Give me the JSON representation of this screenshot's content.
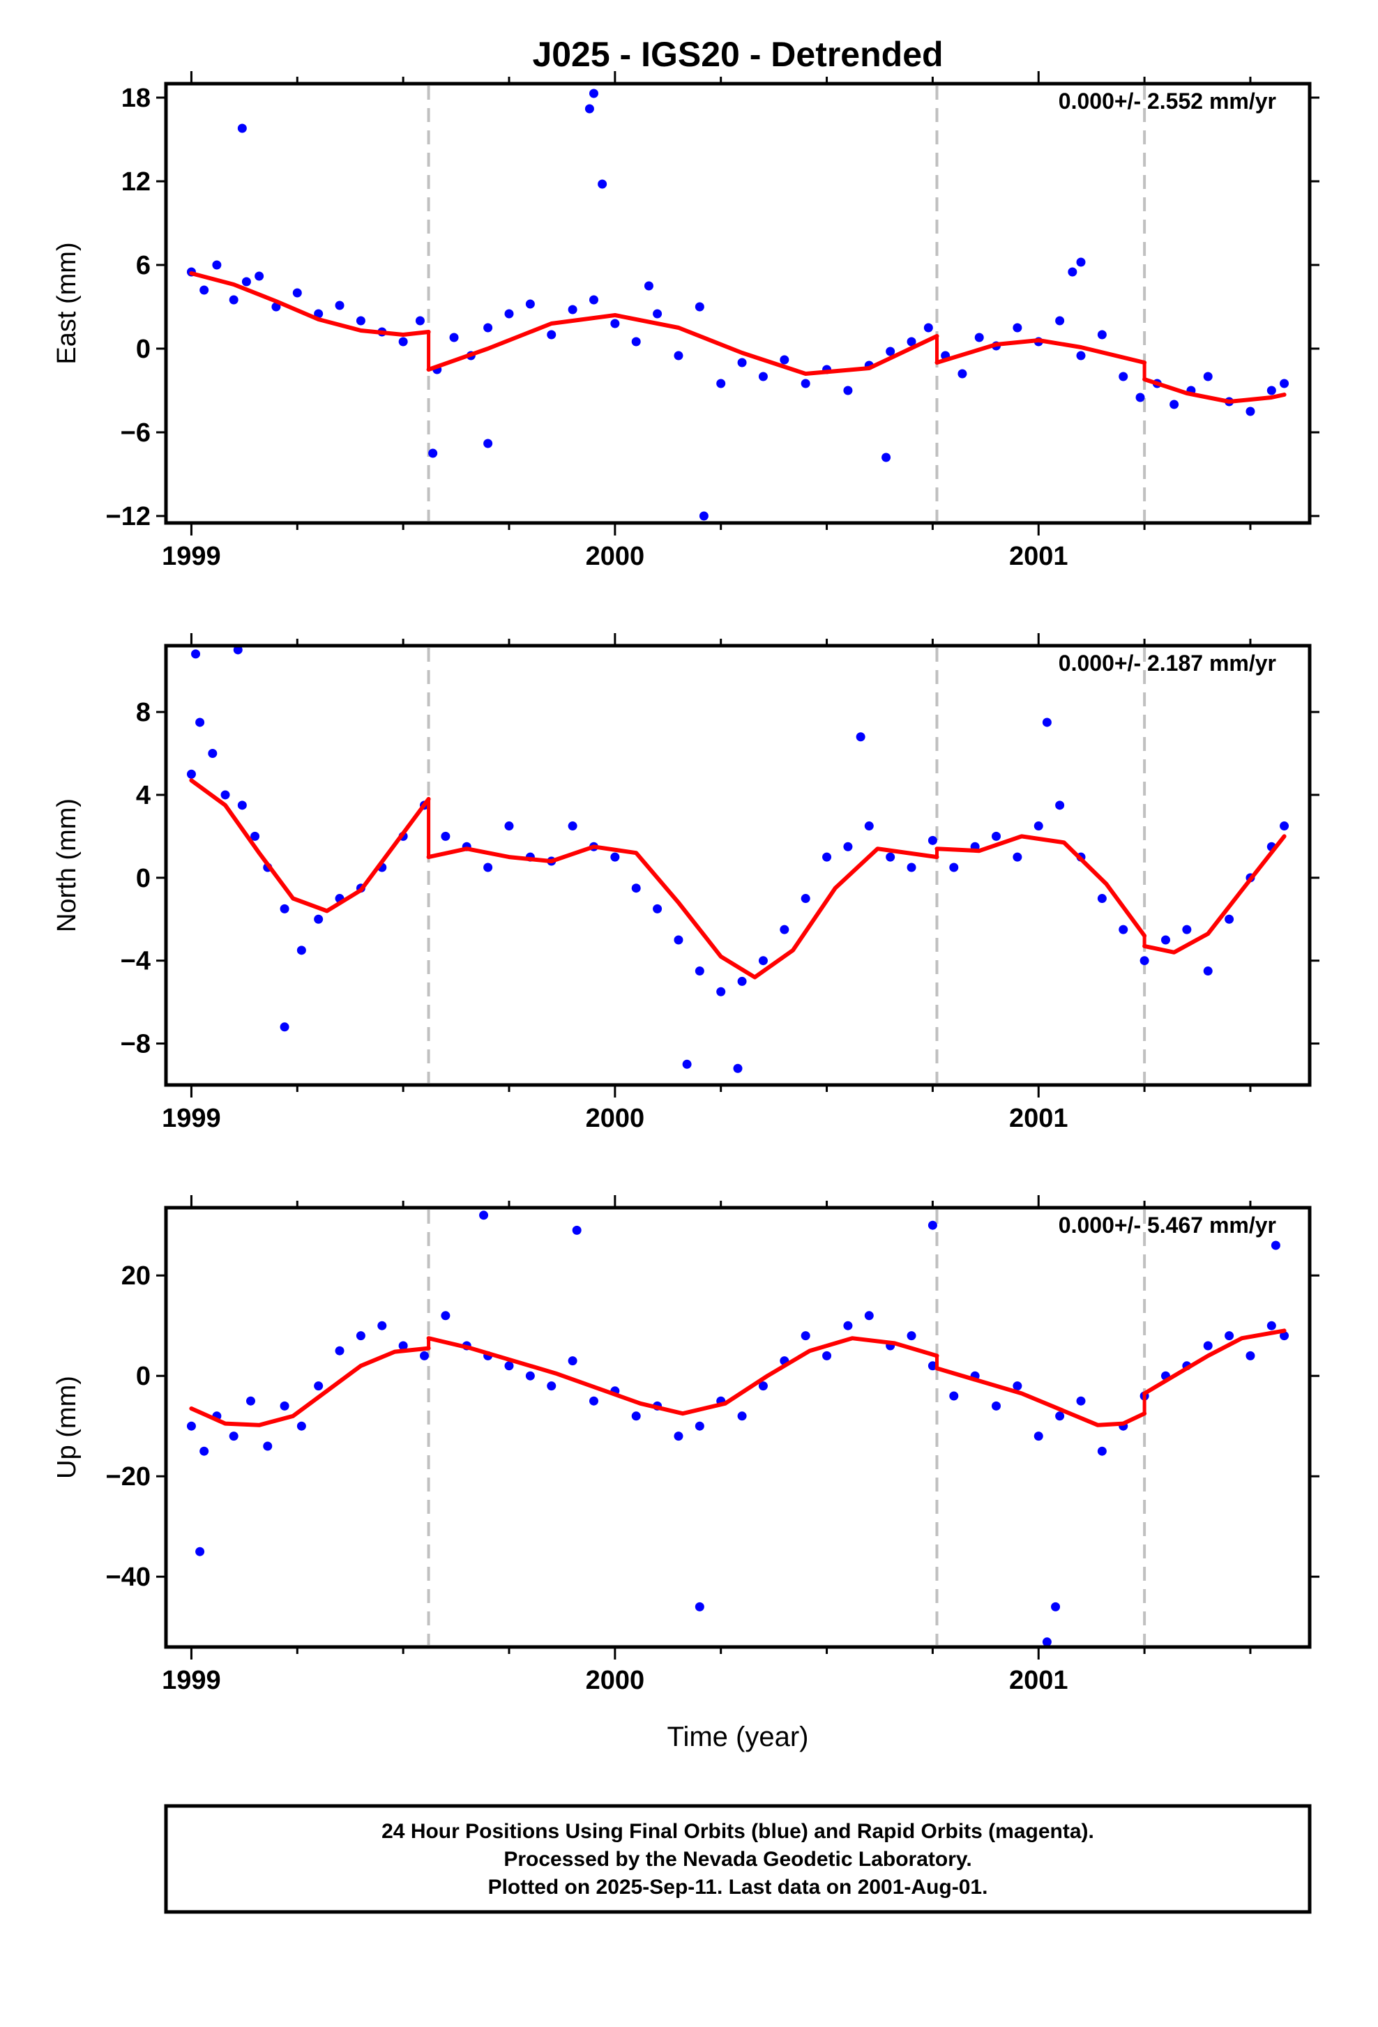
{
  "title": "J025 - IGS20 - Detrended",
  "x_axis": {
    "label": "Time (year)",
    "tick_labels": [
      "1999",
      "2000",
      "2001"
    ]
  },
  "footer": {
    "line1": "24 Hour Positions Using Final Orbits (blue) and Rapid Orbits (magenta).",
    "line2": "Processed by the Nevada Geodetic Laboratory.",
    "line3": "Plotted on 2025-Sep-11. Last data on 2001-Aug-01."
  },
  "colors": {
    "points": "#0000ff",
    "fit": "#ff0000",
    "breaks": "#c0c0c0"
  },
  "chart_data": [
    {
      "type": "scatter",
      "component": "East",
      "ylabel": "East (mm)",
      "rate_label": "0.000+/- 2.552 mm/yr",
      "xlim": [
        1998.94,
        2001.64
      ],
      "ylim": [
        -12.5,
        19.0
      ],
      "yticks": [
        -12,
        -6,
        0,
        6,
        12,
        18
      ],
      "ytick_labels": [
        "−12",
        "−6",
        "0",
        "6",
        "12",
        "18"
      ],
      "xticks": [
        1999,
        2000,
        2001
      ],
      "minor_xticks": [
        1999.25,
        1999.5,
        1999.75,
        2000.25,
        2000.5,
        2000.75,
        2001.25,
        2001.5
      ],
      "breaks": [
        1999.56,
        2000.76,
        2001.25
      ],
      "series": [
        {
          "kind": "points",
          "x": [
            1999.0,
            1999.03,
            1999.06,
            1999.1,
            1999.13,
            1999.16,
            1999.2,
            1999.25,
            1999.3,
            1999.35,
            1999.4,
            1999.45,
            1999.5,
            1999.54,
            1999.58,
            1999.62,
            1999.66,
            1999.7,
            1999.75,
            1999.8,
            1999.85,
            1999.9,
            1999.95,
            2000.0,
            2000.05,
            2000.1,
            2000.15,
            2000.2,
            2000.25,
            2000.3,
            2000.35,
            2000.4,
            2000.45,
            2000.5,
            2000.55,
            2000.6,
            2000.65,
            2000.7,
            2000.74,
            2000.78,
            2000.82,
            2000.86,
            2000.9,
            2000.95,
            2001.0,
            2001.05,
            2001.1,
            2001.15,
            2001.2,
            2001.24,
            2001.28,
            2001.32,
            2001.36,
            2001.4,
            2001.45,
            2001.5,
            2001.55,
            2001.58,
            2001.1,
            1999.12,
            1999.95,
            1999.94,
            1999.97,
            2000.21,
            2000.64,
            1999.7,
            1999.57,
            2000.08,
            2001.08
          ],
          "y": [
            5.5,
            4.2,
            6.0,
            3.5,
            4.8,
            5.2,
            3.0,
            4.0,
            2.5,
            3.1,
            2.0,
            1.2,
            0.5,
            2.0,
            -1.5,
            0.8,
            -0.5,
            1.5,
            2.5,
            3.2,
            1.0,
            2.8,
            3.5,
            1.8,
            0.5,
            2.5,
            -0.5,
            3.0,
            -2.5,
            -1.0,
            -2.0,
            -0.8,
            -2.5,
            -1.5,
            -3.0,
            -1.2,
            -0.2,
            0.5,
            1.5,
            -0.5,
            -1.8,
            0.8,
            0.2,
            1.5,
            0.5,
            2.0,
            -0.5,
            1.0,
            -2.0,
            -3.5,
            -2.5,
            -4.0,
            -3.0,
            -2.0,
            -3.8,
            -4.5,
            -3.0,
            -2.5,
            6.2,
            15.8,
            18.3,
            17.2,
            11.8,
            -12.0,
            -7.8,
            -6.8,
            -7.5,
            4.5,
            5.5
          ]
        },
        {
          "kind": "fit",
          "segments": [
            {
              "x": [
                1999.0,
                1999.1,
                1999.2,
                1999.3,
                1999.4,
                1999.5,
                1999.56
              ],
              "y": [
                5.4,
                4.6,
                3.4,
                2.1,
                1.3,
                1.0,
                1.2
              ]
            },
            {
              "x": [
                1999.56,
                1999.7,
                1999.85,
                2000.0,
                2000.15,
                2000.3,
                2000.45,
                2000.6,
                2000.76
              ],
              "y": [
                -1.5,
                0.0,
                1.8,
                2.4,
                1.5,
                -0.3,
                -1.8,
                -1.4,
                0.9
              ]
            },
            {
              "x": [
                2000.76,
                2000.9,
                2001.0,
                2001.1,
                2001.25
              ],
              "y": [
                -1.0,
                0.3,
                0.6,
                0.1,
                -1.0
              ]
            },
            {
              "x": [
                2001.25,
                2001.35,
                2001.45,
                2001.55,
                2001.58
              ],
              "y": [
                -2.2,
                -3.2,
                -3.8,
                -3.5,
                -3.3
              ]
            }
          ]
        }
      ]
    },
    {
      "type": "scatter",
      "component": "North",
      "ylabel": "North (mm)",
      "rate_label": "0.000+/- 2.187 mm/yr",
      "xlim": [
        1998.94,
        2001.64
      ],
      "ylim": [
        -10.0,
        11.2
      ],
      "yticks": [
        -8,
        -4,
        0,
        4,
        8
      ],
      "ytick_labels": [
        "−8",
        "−4",
        "0",
        "4",
        "8"
      ],
      "xticks": [
        1999,
        2000,
        2001
      ],
      "minor_xticks": [
        1999.25,
        1999.5,
        1999.75,
        2000.25,
        2000.5,
        2000.75,
        2001.25,
        2001.5
      ],
      "breaks": [
        1999.56,
        2000.76,
        2001.25
      ],
      "series": [
        {
          "kind": "points",
          "x": [
            1999.0,
            1999.02,
            1999.05,
            1999.08,
            1999.12,
            1999.15,
            1999.18,
            1999.22,
            1999.26,
            1999.3,
            1999.35,
            1999.4,
            1999.45,
            1999.5,
            1999.55,
            1999.6,
            1999.65,
            1999.7,
            1999.75,
            1999.8,
            1999.85,
            1999.9,
            1999.95,
            2000.0,
            2000.05,
            2000.1,
            2000.15,
            2000.2,
            2000.25,
            2000.3,
            2000.35,
            2000.4,
            2000.45,
            2000.5,
            2000.55,
            2000.6,
            2000.65,
            2000.7,
            2000.75,
            2000.8,
            2000.85,
            2000.9,
            2000.95,
            2001.0,
            2001.05,
            2001.1,
            2001.15,
            2001.2,
            2001.25,
            2001.3,
            2001.35,
            2001.4,
            2001.45,
            2001.5,
            2001.55,
            2001.58,
            1999.01,
            1999.11,
            1999.22,
            2000.17,
            2000.29,
            2001.02,
            2000.58
          ],
          "y": [
            5.0,
            7.5,
            6.0,
            4.0,
            3.5,
            2.0,
            0.5,
            -1.5,
            -3.5,
            -2.0,
            -1.0,
            -0.5,
            0.5,
            2.0,
            3.5,
            2.0,
            1.5,
            0.5,
            2.5,
            1.0,
            0.8,
            2.5,
            1.5,
            1.0,
            -0.5,
            -1.5,
            -3.0,
            -4.5,
            -5.5,
            -5.0,
            -4.0,
            -2.5,
            -1.0,
            1.0,
            1.5,
            2.5,
            1.0,
            0.5,
            1.8,
            0.5,
            1.5,
            2.0,
            1.0,
            2.5,
            3.5,
            1.0,
            -1.0,
            -2.5,
            -4.0,
            -3.0,
            -2.5,
            -4.5,
            -2.0,
            0.0,
            1.5,
            2.5,
            10.8,
            11.0,
            -7.2,
            -9.0,
            -9.2,
            7.5,
            6.8
          ]
        },
        {
          "kind": "fit",
          "segments": [
            {
              "x": [
                1999.0,
                1999.08,
                1999.16,
                1999.24,
                1999.32,
                1999.4,
                1999.48,
                1999.56
              ],
              "y": [
                4.7,
                3.5,
                1.2,
                -1.0,
                -1.6,
                -0.6,
                1.6,
                3.8
              ]
            },
            {
              "x": [
                1999.56,
                1999.65,
                1999.75,
                1999.85,
                1999.95,
                2000.05,
                2000.15,
                2000.25,
                2000.33,
                2000.42,
                2000.52,
                2000.62,
                2000.76
              ],
              "y": [
                1.0,
                1.4,
                1.0,
                0.8,
                1.5,
                1.2,
                -1.2,
                -3.8,
                -4.8,
                -3.5,
                -0.5,
                1.4,
                1.0
              ]
            },
            {
              "x": [
                2000.76,
                2000.86,
                2000.96,
                2001.06,
                2001.16,
                2001.25
              ],
              "y": [
                1.4,
                1.3,
                2.0,
                1.7,
                -0.3,
                -2.8
              ]
            },
            {
              "x": [
                2001.25,
                2001.32,
                2001.4,
                2001.48,
                2001.58
              ],
              "y": [
                -3.3,
                -3.6,
                -2.7,
                -0.6,
                2.0
              ]
            }
          ]
        }
      ]
    },
    {
      "type": "scatter",
      "component": "Up",
      "ylabel": "Up (mm)",
      "rate_label": "0.000+/- 5.467 mm/yr",
      "xlim": [
        1998.94,
        2001.64
      ],
      "ylim": [
        -54.0,
        33.5
      ],
      "yticks": [
        -40,
        -20,
        0,
        20
      ],
      "ytick_labels": [
        "−40",
        "−20",
        "0",
        "20"
      ],
      "xticks": [
        1999,
        2000,
        2001
      ],
      "minor_xticks": [
        1999.25,
        1999.5,
        1999.75,
        2000.25,
        2000.5,
        2000.75,
        2001.25,
        2001.5
      ],
      "breaks": [
        1999.56,
        2000.76,
        2001.25
      ],
      "series": [
        {
          "kind": "points",
          "x": [
            1999.0,
            1999.03,
            1999.06,
            1999.1,
            1999.14,
            1999.18,
            1999.22,
            1999.26,
            1999.3,
            1999.35,
            1999.4,
            1999.45,
            1999.5,
            1999.55,
            1999.6,
            1999.65,
            1999.7,
            1999.75,
            1999.8,
            1999.85,
            1999.9,
            1999.95,
            2000.0,
            2000.05,
            2000.1,
            2000.15,
            2000.2,
            2000.25,
            2000.3,
            2000.35,
            2000.4,
            2000.45,
            2000.5,
            2000.55,
            2000.6,
            2000.65,
            2000.7,
            2000.75,
            2000.8,
            2000.85,
            2000.9,
            2000.95,
            2001.0,
            2001.05,
            2001.1,
            2001.15,
            2001.2,
            2001.25,
            2001.3,
            2001.35,
            2001.4,
            2001.45,
            2001.5,
            2001.55,
            2001.58,
            1999.02,
            1999.69,
            1999.91,
            2000.2,
            2000.75,
            2001.04,
            2001.02,
            2001.56
          ],
          "y": [
            -10.0,
            -15.0,
            -8.0,
            -12.0,
            -5.0,
            -14.0,
            -6.0,
            -10.0,
            -2.0,
            5.0,
            8.0,
            10.0,
            6.0,
            4.0,
            12.0,
            6.0,
            4.0,
            2.0,
            0.0,
            -2.0,
            3.0,
            -5.0,
            -3.0,
            -8.0,
            -6.0,
            -12.0,
            -10.0,
            -5.0,
            -8.0,
            -2.0,
            3.0,
            8.0,
            4.0,
            10.0,
            12.0,
            6.0,
            8.0,
            2.0,
            -4.0,
            0.0,
            -6.0,
            -2.0,
            -12.0,
            -8.0,
            -5.0,
            -15.0,
            -10.0,
            -4.0,
            0.0,
            2.0,
            6.0,
            8.0,
            4.0,
            10.0,
            8.0,
            -35.0,
            32.0,
            29.0,
            -46.0,
            30.0,
            -46.0,
            -53.0,
            26.0
          ]
        },
        {
          "kind": "fit",
          "segments": [
            {
              "x": [
                1999.0,
                1999.08,
                1999.16,
                1999.24,
                1999.32,
                1999.4,
                1999.48,
                1999.56
              ],
              "y": [
                -6.5,
                -9.5,
                -9.8,
                -8.0,
                -3.0,
                2.0,
                4.8,
                5.5
              ]
            },
            {
              "x": [
                1999.56,
                1999.66,
                1999.76,
                1999.86,
                1999.96,
                2000.06,
                2000.16,
                2000.26,
                2000.36,
                2000.46,
                2000.56,
                2000.66,
                2000.76
              ],
              "y": [
                7.5,
                5.5,
                3.0,
                0.5,
                -2.5,
                -5.5,
                -7.5,
                -5.5,
                0.0,
                5.0,
                7.5,
                6.5,
                4.0
              ]
            },
            {
              "x": [
                2000.76,
                2000.86,
                2000.96,
                2001.06,
                2001.14,
                2001.2,
                2001.25
              ],
              "y": [
                1.5,
                -1.0,
                -3.5,
                -7.0,
                -9.8,
                -9.5,
                -7.5
              ]
            },
            {
              "x": [
                2001.25,
                2001.32,
                2001.4,
                2001.48,
                2001.58
              ],
              "y": [
                -3.5,
                0.0,
                4.0,
                7.5,
                9.0
              ]
            }
          ]
        }
      ]
    }
  ]
}
